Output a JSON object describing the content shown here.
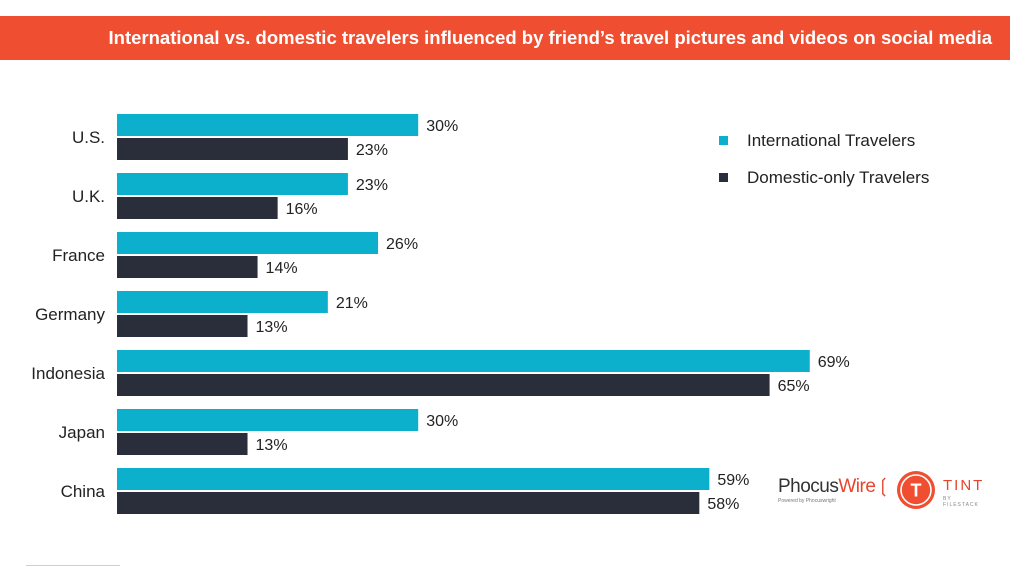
{
  "header": {
    "title": "International vs. domestic travelers influenced by friend’s travel pictures and videos on social media"
  },
  "colors": {
    "header_bg": "#f04e30",
    "international": "#0db0cc",
    "domestic": "#2a2e3a"
  },
  "chart_data": {
    "type": "bar",
    "orientation": "horizontal",
    "title": "International vs. domestic travelers influenced by friend’s travel pictures and videos on social media",
    "categories": [
      "U.S.",
      "U.K.",
      "France",
      "Germany",
      "Indonesia",
      "Japan",
      "China"
    ],
    "series": [
      {
        "name": "International Travelers",
        "values": [
          30,
          23,
          26,
          21,
          69,
          30,
          59
        ],
        "labels": [
          "30%",
          "23%",
          "26%",
          "21%",
          "69%",
          "30%",
          "59%"
        ]
      },
      {
        "name": "Domestic-only Travelers",
        "values": [
          23,
          16,
          14,
          13,
          65,
          13,
          58
        ],
        "labels": [
          "23%",
          "16%",
          "14%",
          "13%",
          "65%",
          "13%",
          "58%"
        ]
      }
    ],
    "unit": "%",
    "xlim": [
      0,
      70
    ],
    "grid": false,
    "legend_position": "top-right"
  },
  "logos": {
    "phocuswire": {
      "text_a": "Phocus",
      "text_b": "Wire",
      "sub": "Powered by Phocuswright"
    },
    "tint": {
      "letter": "T",
      "text": "TINT",
      "sub": "BY FILESTACK"
    }
  }
}
